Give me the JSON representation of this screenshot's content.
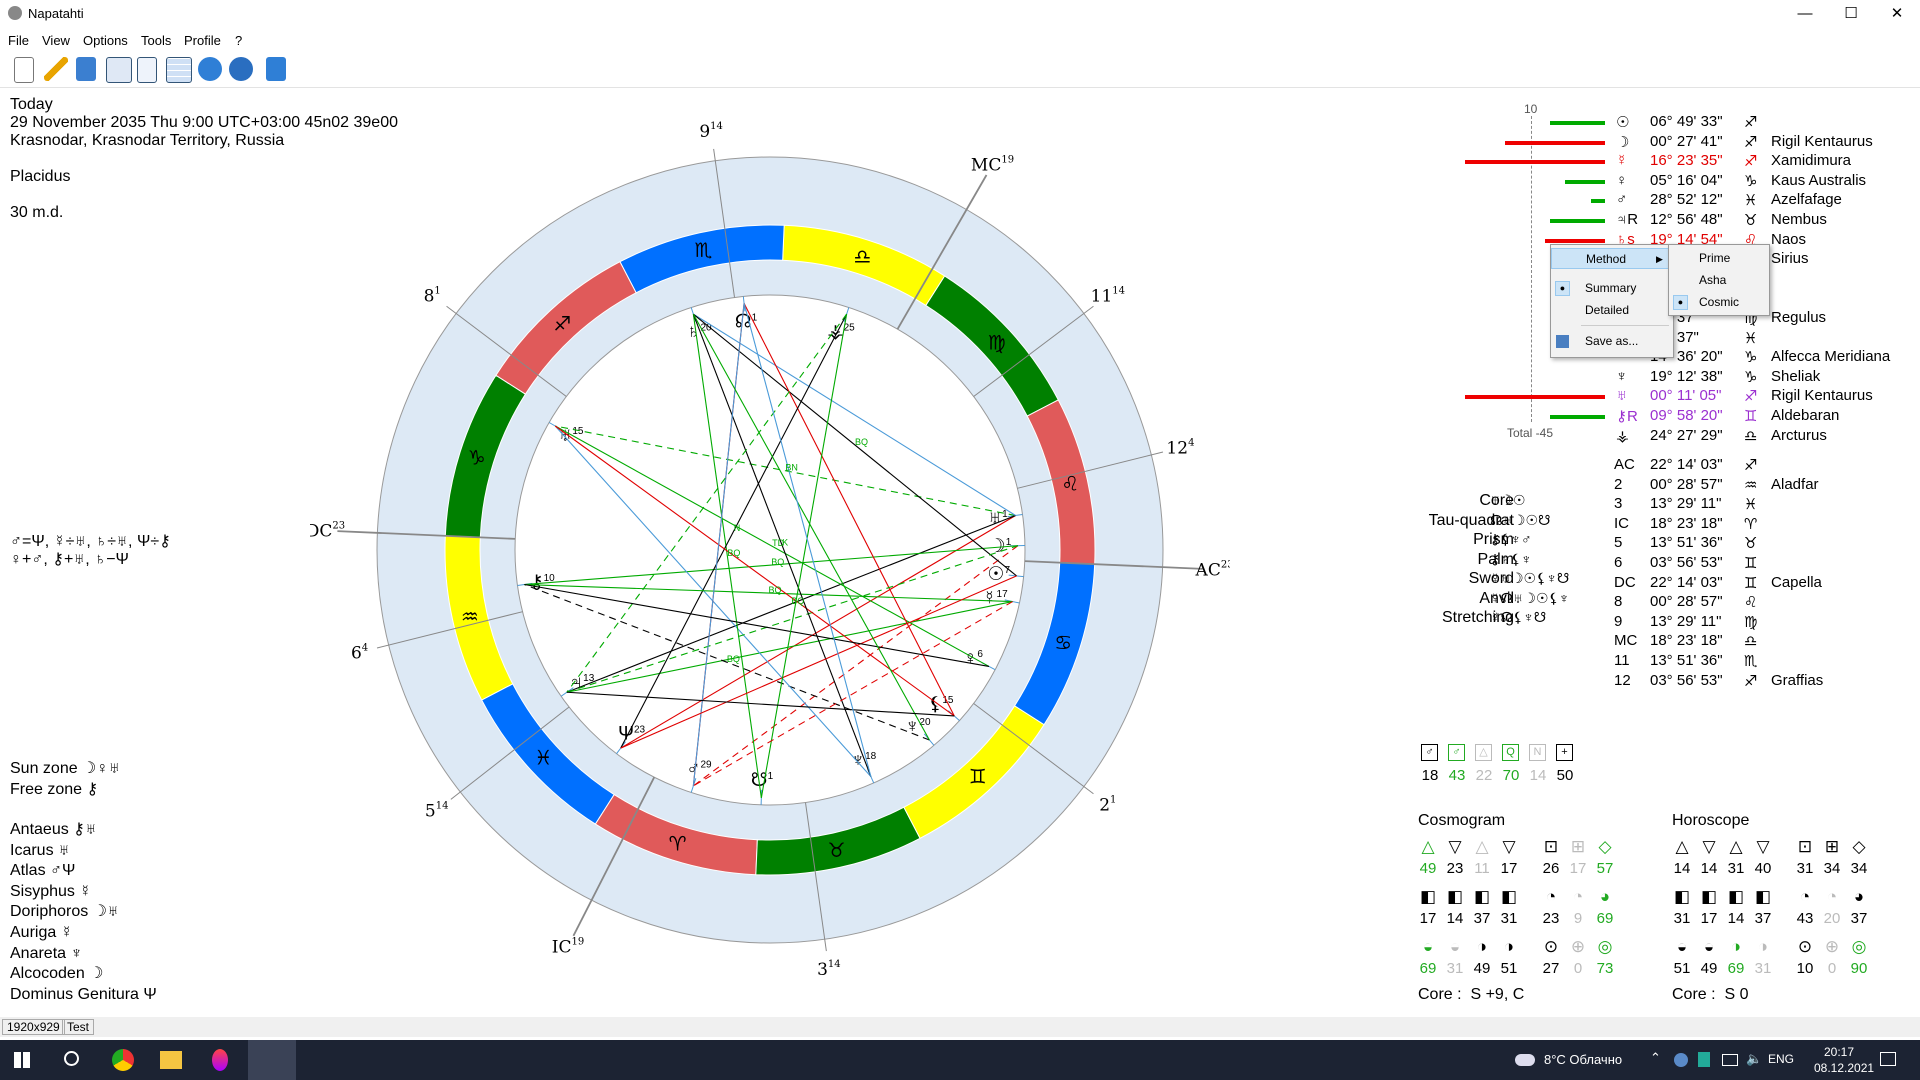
{
  "window": {
    "title": "Napatahti",
    "minimize": "—",
    "maximize": "☐",
    "close": "✕"
  },
  "menu": [
    "File",
    "View",
    "Options",
    "Tools",
    "Profile",
    "?"
  ],
  "info": {
    "line1": "Today",
    "line2": "29 November 2035 Thu 9:00 UTC+03:00 45n02 39e00",
    "line3": "Krasnodar, Krasnodar Territory, Russia",
    "line4": "Placidus",
    "line5": "30 m.d."
  },
  "aspects_text": {
    "line1": "♂=Ψ, ☿÷♅, ♄÷♅, Ψ÷⚷",
    "line2": "♀+♂, ⚷+♅, ♄−Ψ"
  },
  "zones": {
    "sun_zone": "Sun zone ☽♀♅",
    "free_zone": "Free zone ⚷"
  },
  "roles": [
    "Antaeus ⚷♅",
    "Icarus ♅",
    "Atlas ♂Ψ",
    "Sisyphus ☿",
    "Doriphoros ☽♅",
    "Auriga ☿",
    "Anareta ♆",
    "Alcocoden ☽",
    "Dominus Genitura Ψ"
  ],
  "chart": {
    "cusps": [
      {
        "label": "9",
        "sup": "14"
      },
      {
        "label": "MC",
        "sup": "19"
      },
      {
        "label": "11",
        "sup": "14"
      },
      {
        "label": "12",
        "sup": "4"
      },
      {
        "label": "AC",
        "sup": "23"
      },
      {
        "label": "2",
        "sup": "1"
      },
      {
        "label": "3",
        "sup": "14"
      },
      {
        "label": "IC",
        "sup": "19"
      },
      {
        "label": "5",
        "sup": "14"
      },
      {
        "label": "6",
        "sup": "4"
      },
      {
        "label": "DC",
        "sup": "23"
      },
      {
        "label": "8",
        "sup": "1"
      }
    ],
    "signs": [
      "♍",
      "♎",
      "♏",
      "♐",
      "♑",
      "♒",
      "♓",
      "♈",
      "♉",
      "♊",
      "♋",
      "♌"
    ],
    "sign_colors": [
      "#008000",
      "#ffff00",
      "#0070ff",
      "#e05a5a"
    ],
    "planets": [
      {
        "glyph": "♅",
        "num": "1"
      },
      {
        "glyph": "☽",
        "num": "1"
      },
      {
        "glyph": "☉",
        "num": "7"
      },
      {
        "glyph": "☿",
        "num": "17"
      },
      {
        "glyph": "♀",
        "num": "6"
      },
      {
        "glyph": "⚸",
        "num": "15"
      },
      {
        "glyph": "♆",
        "num": "20"
      },
      {
        "glyph": "♆",
        "num": "18"
      },
      {
        "glyph": "☋",
        "num": "1"
      },
      {
        "glyph": "♂",
        "num": "29"
      },
      {
        "glyph": "Ψ",
        "num": "23"
      },
      {
        "glyph": "♃",
        "num": "13"
      },
      {
        "glyph": "⚷",
        "num": "10"
      },
      {
        "glyph": "♅",
        "num": "15"
      },
      {
        "glyph": "♄",
        "num": "20"
      },
      {
        "glyph": "☊",
        "num": "1"
      },
      {
        "glyph": "⚶",
        "num": "25"
      }
    ],
    "aspect_labels": [
      "BN",
      "BQ",
      "BQ",
      "BQ",
      "TD",
      "BQ",
      "BQ",
      "N",
      "BQ",
      "K"
    ]
  },
  "scale": {
    "max": "10",
    "total": "Total -45"
  },
  "planets_table": [
    {
      "glyph": "☉",
      "pos": "06° 49' 33\"",
      "sign": "♐",
      "star": "",
      "color": "#000000",
      "bar": 55,
      "bar_color": "#00aa00"
    },
    {
      "glyph": "☽",
      "pos": "00° 27' 41\"",
      "sign": "♐",
      "star": "Rigil Kentaurus",
      "color": "#000000",
      "bar": 100,
      "bar_color": "#ee0000"
    },
    {
      "glyph": "☿",
      "pos": "16° 23' 35\"",
      "sign": "♐",
      "star": "Xamidimura",
      "color": "#e00000",
      "bar": 140,
      "bar_color": "#ee0000"
    },
    {
      "glyph": "♀",
      "pos": "05° 16' 04\"",
      "sign": "♑",
      "star": "Kaus Australis",
      "color": "#000000",
      "bar": 40,
      "bar_color": "#00aa00"
    },
    {
      "glyph": "♂",
      "pos": "28° 52' 12\"",
      "sign": "♓",
      "star": "Azelfafage",
      "color": "#000000",
      "bar": 14,
      "bar_color": "#00aa00"
    },
    {
      "glyph": "♃R",
      "pos": "12° 56' 48\"",
      "sign": "♉",
      "star": "Nembus",
      "color": "#000000",
      "bar": 55,
      "bar_color": "#00aa00"
    },
    {
      "glyph": "♄s",
      "pos": "19° 14' 54\"",
      "sign": "♌",
      "star": "Naos",
      "color": "#e00000",
      "bar": 60,
      "bar_color": "#ee0000"
    },
    {
      "glyph": "",
      "pos": "",
      "sign": "",
      "star": "Sirius",
      "color": "#000000",
      "bar": 0,
      "bar_color": "#00aa00"
    },
    {
      "glyph": "",
      "pos": "",
      "sign": "",
      "star": "",
      "color": "#000000",
      "bar": 0,
      "bar_color": "#00aa00"
    },
    {
      "glyph": "",
      "pos": "",
      "sign": "",
      "star": "",
      "color": "#000000",
      "bar": 0,
      "bar_color": "#00aa00"
    },
    {
      "glyph": "",
      "pos": "15° 37'",
      "sign": "♍",
      "star": "Regulus",
      "color": "#000000",
      "bar": 0,
      "bar_color": "#00aa00"
    },
    {
      "glyph": "",
      "pos": "15° 37\"",
      "sign": "♓",
      "star": "",
      "color": "#000000",
      "bar": 0,
      "bar_color": "#00aa00"
    },
    {
      "glyph": "",
      "pos": "14° 36' 20\"",
      "sign": "♑",
      "star": "Alfecca Meridiana",
      "color": "#000000",
      "bar": 0,
      "bar_color": "#00aa00"
    },
    {
      "glyph": "♆",
      "pos": "19° 12' 38\"",
      "sign": "♑",
      "star": "Sheliak",
      "color": "#000000",
      "bar": 0,
      "bar_color": "#00aa00"
    },
    {
      "glyph": "♅",
      "pos": "00° 11' 05\"",
      "sign": "♐",
      "star": "Rigil Kentaurus",
      "color": "#9b30d0",
      "bar": 140,
      "bar_color": "#ee0000"
    },
    {
      "glyph": "⚷R",
      "pos": "09° 58' 20\"",
      "sign": "♊",
      "star": "Aldebaran",
      "color": "#9b30d0",
      "bar": 55,
      "bar_color": "#00aa00"
    },
    {
      "glyph": "⚶",
      "pos": "24° 27' 29\"",
      "sign": "♎",
      "star": "Arcturus",
      "color": "#000000",
      "bar": 0,
      "bar_color": "#00aa00"
    }
  ],
  "houses_table": [
    {
      "h": "AC",
      "pos": "22° 14' 03\"",
      "sign": "♐",
      "star": ""
    },
    {
      "h": "2",
      "pos": "00° 28' 57\"",
      "sign": "♒",
      "star": "Aladfar"
    },
    {
      "h": "3",
      "pos": "13° 29' 11\"",
      "sign": "♓",
      "star": ""
    },
    {
      "h": "IC",
      "pos": "18° 23' 18\"",
      "sign": "♈",
      "star": ""
    },
    {
      "h": "5",
      "pos": "13° 51' 36\"",
      "sign": "♉",
      "star": ""
    },
    {
      "h": "6",
      "pos": "03° 56' 53\"",
      "sign": "♊",
      "star": ""
    },
    {
      "h": "DC",
      "pos": "22° 14' 03\"",
      "sign": "♊",
      "star": "Capella"
    },
    {
      "h": "8",
      "pos": "00° 28' 57\"",
      "sign": "♌",
      "star": ""
    },
    {
      "h": "9",
      "pos": "13° 29' 11\"",
      "sign": "♍",
      "star": ""
    },
    {
      "h": "MC",
      "pos": "18° 23' 18\"",
      "sign": "♎",
      "star": ""
    },
    {
      "h": "11",
      "pos": "13° 51' 36\"",
      "sign": "♏",
      "star": ""
    },
    {
      "h": "12",
      "pos": "03° 56' 53\"",
      "sign": "♐",
      "star": "Graffias"
    }
  ],
  "figures": [
    {
      "name": "Core",
      "glyphs": "♅☽☉"
    },
    {
      "name": "Tau-quadrat",
      "glyphs": "☊♅☽☉☋"
    },
    {
      "name": "Prism",
      "glyphs": "⚷⚸♆♂"
    },
    {
      "name": "Palm",
      "glyphs": "⚷♄⚸♆"
    },
    {
      "name": "Sword",
      "glyphs": "☿♅☽☉⚸♆☋"
    },
    {
      "name": "Anvil",
      "glyphs": "☿☊♅☽☉⚸♆"
    },
    {
      "name": "Stretching",
      "glyphs": "☿☊⚸♆☋"
    }
  ],
  "mini_stats": [
    {
      "icon": "♂",
      "value": "18",
      "color": "#000000"
    },
    {
      "icon": "♂",
      "value": "43",
      "color": "#22aa22"
    },
    {
      "icon": "△",
      "value": "22",
      "color": "#bbbbbb"
    },
    {
      "icon": "Q",
      "value": "70",
      "color": "#22aa22"
    },
    {
      "icon": "N",
      "value": "14",
      "color": "#bbbbbb"
    },
    {
      "icon": "+",
      "value": "50",
      "color": "#000000"
    }
  ],
  "cosmogram": {
    "title": "Cosmogram",
    "rows": [
      [
        {
          "v": "49",
          "c": "#22aa22"
        },
        {
          "v": "23",
          "c": "#000000"
        },
        {
          "v": "11",
          "c": "#bbbbbb"
        },
        {
          "v": "17",
          "c": "#000000"
        },
        {
          "v": "26",
          "c": "#000000"
        },
        {
          "v": "17",
          "c": "#bbbbbb"
        },
        {
          "v": "57",
          "c": "#22aa22"
        }
      ],
      [
        {
          "v": "17",
          "c": "#000000"
        },
        {
          "v": "14",
          "c": "#000000"
        },
        {
          "v": "37",
          "c": "#000000"
        },
        {
          "v": "31",
          "c": "#000000"
        },
        {
          "v": "23",
          "c": "#000000"
        },
        {
          "v": "9",
          "c": "#bbbbbb"
        },
        {
          "v": "69",
          "c": "#22aa22"
        }
      ],
      [
        {
          "v": "69",
          "c": "#22aa22"
        },
        {
          "v": "31",
          "c": "#bbbbbb"
        },
        {
          "v": "49",
          "c": "#000000"
        },
        {
          "v": "51",
          "c": "#000000"
        },
        {
          "v": "27",
          "c": "#000000"
        },
        {
          "v": "0",
          "c": "#bbbbbb"
        },
        {
          "v": "73",
          "c": "#22aa22"
        }
      ]
    ],
    "core": "Core :  S +9, C"
  },
  "horoscope": {
    "title": "Horoscope",
    "rows": [
      [
        {
          "v": "14",
          "c": "#000000"
        },
        {
          "v": "14",
          "c": "#000000"
        },
        {
          "v": "31",
          "c": "#000000"
        },
        {
          "v": "40",
          "c": "#000000"
        },
        {
          "v": "31",
          "c": "#000000"
        },
        {
          "v": "34",
          "c": "#000000"
        },
        {
          "v": "34",
          "c": "#000000"
        }
      ],
      [
        {
          "v": "31",
          "c": "#000000"
        },
        {
          "v": "17",
          "c": "#000000"
        },
        {
          "v": "14",
          "c": "#000000"
        },
        {
          "v": "37",
          "c": "#000000"
        },
        {
          "v": "43",
          "c": "#000000"
        },
        {
          "v": "20",
          "c": "#bbbbbb"
        },
        {
          "v": "37",
          "c": "#000000"
        }
      ],
      [
        {
          "v": "51",
          "c": "#000000"
        },
        {
          "v": "49",
          "c": "#000000"
        },
        {
          "v": "69",
          "c": "#22aa22"
        },
        {
          "v": "31",
          "c": "#bbbbbb"
        },
        {
          "v": "10",
          "c": "#000000"
        },
        {
          "v": "0",
          "c": "#bbbbbb"
        },
        {
          "v": "90",
          "c": "#22aa22"
        }
      ]
    ],
    "core": "Core :  S 0"
  },
  "context_menu": {
    "method": "Method",
    "summary": "Summary",
    "detailed": "Detailed",
    "save_as": "Save as...",
    "submenu": [
      "Prime",
      "Asha",
      "Cosmic"
    ]
  },
  "status": {
    "size": "1920x929",
    "mode": "Test"
  },
  "taskbar": {
    "weather": "8°C  Облачно",
    "lang": "ENG",
    "time": "20:17",
    "date": "08.12.2021"
  }
}
